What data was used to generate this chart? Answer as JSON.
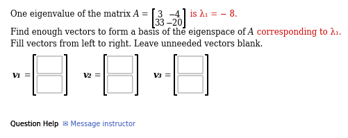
{
  "bg_color": "#ffffff",
  "text_color": "#000000",
  "red_color": "#cc0000",
  "box_edge_color": "#aaaaaa",
  "fs": 8.5,
  "line1_normal": "One eigenvalue of the matrix ",
  "line1_italic": "A",
  "line1_eq": " = ",
  "matrix": [
    [
      "3",
      "−4"
    ],
    [
      "33",
      "−20"
    ]
  ],
  "line1_red": " is λ₁ = − 8.",
  "line2_normal": "Find enough vectors to form a basis of the eigenspace of ",
  "line2_italic": "A",
  "line2_red": " corresponding to λ₁.",
  "line3": "Fill vectors from left to right. Leave unneeded vectors blank.",
  "vec_labels": [
    "v₁",
    "v₂",
    "v₃"
  ],
  "bottom_text": "Question Help",
  "bottom_link": "  ✉ Message instructor"
}
